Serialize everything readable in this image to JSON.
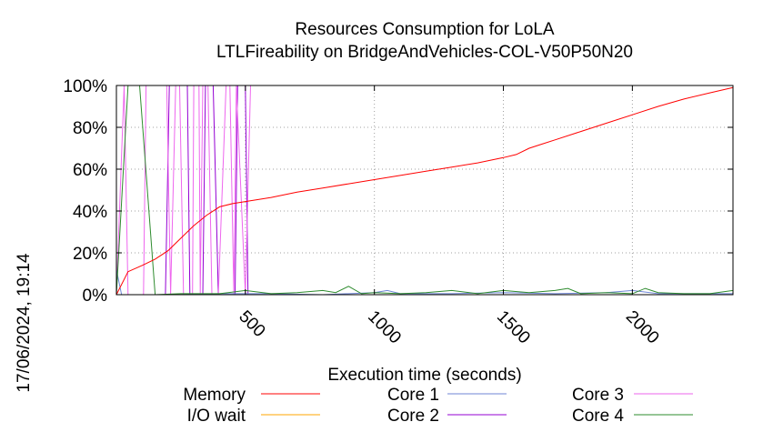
{
  "chart_data": {
    "type": "line",
    "title": "Resources Consumption for LoLA",
    "subtitle": "LTLFireability on BridgeAndVehicles-COL-V50P50N20",
    "xlabel": "Execution time (seconds)",
    "ylabel": "",
    "side_label": "17/06/2024, 19:14",
    "xlim": [
      0,
      2390
    ],
    "ylim": [
      0,
      100
    ],
    "x_ticks": [
      500,
      1000,
      1500,
      2000
    ],
    "y_ticks": [
      0,
      20,
      40,
      60,
      80,
      100
    ],
    "y_tick_labels": [
      "0%",
      "20%",
      "40%",
      "60%",
      "80%",
      "100%"
    ],
    "grid": true,
    "legend_position": "bottom",
    "series": [
      {
        "name": "Memory",
        "color": "#ff0000",
        "x": [
          0,
          45,
          100,
          150,
          200,
          250,
          300,
          350,
          400,
          450,
          500,
          600,
          700,
          800,
          900,
          1000,
          1100,
          1200,
          1300,
          1400,
          1500,
          1550,
          1600,
          1650,
          1700,
          1800,
          1900,
          2000,
          2100,
          2200,
          2300,
          2390
        ],
        "y": [
          0,
          11,
          14,
          17,
          21,
          27,
          33,
          38,
          42,
          43.5,
          44.5,
          46.5,
          49,
          51,
          53,
          55,
          57,
          59,
          61,
          63,
          65.5,
          67,
          70,
          72,
          74,
          78,
          82,
          86,
          90,
          93.5,
          96.5,
          99
        ]
      },
      {
        "name": "I/O wait",
        "color": "#ffa500",
        "x": [
          0,
          2390
        ],
        "y": [
          0,
          0
        ]
      },
      {
        "name": "Core 1",
        "color": "#6f86d6",
        "x": [
          0,
          20,
          40,
          200,
          400,
          600,
          800,
          1000,
          1050,
          1100,
          1300,
          1500,
          1700,
          1900,
          2000,
          2100,
          2300,
          2390
        ],
        "y": [
          12,
          0,
          0,
          0,
          0.5,
          0.5,
          0,
          1,
          2,
          0.5,
          0.5,
          1,
          0.5,
          1,
          2,
          0.5,
          0.5,
          0.5
        ]
      },
      {
        "name": "Core 2",
        "color": "#9400d3",
        "x": [
          0,
          20,
          130,
          190,
          205,
          275,
          285,
          335,
          345,
          375,
          395,
          460,
          470,
          500,
          510,
          560,
          700,
          900,
          1100,
          1300,
          1500,
          1700,
          1900,
          2100,
          2390
        ],
        "y": [
          0,
          0,
          0,
          0,
          100,
          100,
          0,
          0,
          100,
          100,
          0,
          0,
          100,
          100,
          0,
          0,
          0,
          0,
          0,
          0,
          0,
          0,
          0,
          0,
          0
        ]
      },
      {
        "name": "Core 3",
        "color": "#ee66ee",
        "x": [
          0,
          30,
          45,
          90,
          105,
          115,
          150,
          155,
          195,
          210,
          230,
          245,
          260,
          295,
          300,
          320,
          325,
          335,
          355,
          370,
          395,
          425,
          440,
          455,
          465,
          500,
          520,
          2390
        ],
        "y": [
          0,
          100,
          0,
          0,
          0,
          100,
          100,
          100,
          100,
          0,
          100,
          100,
          0,
          0,
          100,
          100,
          0,
          100,
          100,
          0,
          0,
          100,
          100,
          0,
          100,
          0,
          100,
          100
        ]
      },
      {
        "name": "Core 4",
        "color": "#2e8b2e",
        "x": [
          0,
          45,
          90,
          150,
          250,
          400,
          500,
          600,
          700,
          800,
          850,
          900,
          950,
          1000,
          1100,
          1200,
          1300,
          1400,
          1500,
          1600,
          1700,
          1750,
          1800,
          1900,
          2000,
          2050,
          2100,
          2200,
          2300,
          2390
        ],
        "y": [
          0,
          100,
          100,
          0,
          0.5,
          0.5,
          2,
          0.5,
          1,
          2,
          1,
          4,
          0.5,
          1,
          0.5,
          1,
          2,
          0.5,
          2,
          1,
          2,
          3,
          0.5,
          1,
          0.5,
          3,
          1,
          0.5,
          0.5,
          2
        ]
      }
    ]
  }
}
